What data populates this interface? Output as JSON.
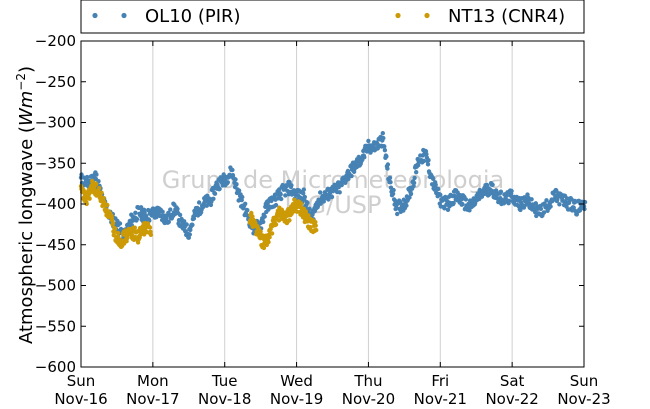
{
  "chart_data": {
    "type": "scatter",
    "ylabel_text": "Atmospheric longwave (",
    "ylabel_unit": "Wm",
    "ylabel_exp": "−2",
    "ylabel_close": ")",
    "xlabel": "",
    "ylim": [
      -600,
      -200
    ],
    "xlim": [
      0,
      7
    ],
    "yticks": [
      -200,
      -250,
      -300,
      -350,
      -400,
      -450,
      -500,
      -550,
      -600
    ],
    "ytick_labels": [
      "−200",
      "−250",
      "−300",
      "−350",
      "−400",
      "−450",
      "−500",
      "−550",
      "−600"
    ],
    "xticks": [
      0,
      1,
      2,
      3,
      4,
      5,
      6,
      7
    ],
    "xtick_labels": [
      [
        "Sun",
        "Nov-16"
      ],
      [
        "Mon",
        "Nov-17"
      ],
      [
        "Tue",
        "Nov-18"
      ],
      [
        "Wed",
        "Nov-19"
      ],
      [
        "Thu",
        "Nov-20"
      ],
      [
        "Fri",
        "Nov-21"
      ],
      [
        "Sat",
        "Nov-22"
      ],
      [
        "Sun",
        "Nov-23"
      ]
    ],
    "grid": "vertical",
    "legend_position": "top",
    "watermark": [
      "Grupo de Micrometeorologia",
      "IAG/USP"
    ],
    "series": [
      {
        "name": "OL10 (PIR)",
        "color": "#4682b4",
        "x": [
          0,
          0.1,
          0.2,
          0.3,
          0.4,
          0.5,
          0.6,
          0.7,
          0.8,
          0.9,
          1.0,
          1.1,
          1.2,
          1.3,
          1.4,
          1.5,
          1.6,
          1.7,
          1.8,
          1.9,
          2.0,
          2.1,
          2.2,
          2.3,
          2.4,
          2.5,
          2.6,
          2.7,
          2.8,
          2.9,
          3.0,
          3.1,
          3.2,
          3.3,
          3.4,
          3.5,
          3.6,
          3.7,
          3.8,
          3.9,
          4.0,
          4.1,
          4.2,
          4.3,
          4.4,
          4.5,
          4.6,
          4.7,
          4.8,
          4.9,
          5.0,
          5.1,
          5.2,
          5.3,
          5.4,
          5.5,
          5.6,
          5.7,
          5.8,
          5.9,
          6.0,
          6.1,
          6.2,
          6.3,
          6.4,
          6.5,
          6.6,
          6.7,
          6.8,
          6.9,
          7.0
        ],
        "values": [
          -370,
          -375,
          -365,
          -395,
          -415,
          -425,
          -440,
          -420,
          -410,
          -415,
          -412,
          -410,
          -420,
          -405,
          -425,
          -435,
          -410,
          -400,
          -395,
          -375,
          -370,
          -360,
          -390,
          -410,
          -430,
          -425,
          -400,
          -395,
          -385,
          -380,
          -390,
          -390,
          -420,
          -395,
          -390,
          -385,
          -380,
          -365,
          -355,
          -345,
          -330,
          -330,
          -320,
          -375,
          -405,
          -400,
          -380,
          -345,
          -340,
          -375,
          -395,
          -400,
          -390,
          -395,
          -405,
          -395,
          -385,
          -380,
          -390,
          -395,
          -390,
          -400,
          -395,
          -405,
          -410,
          -400,
          -390,
          -395,
          -400,
          -405,
          -400
        ]
      },
      {
        "name": "NT13 (CNR4)",
        "color": "#cc9a06",
        "x": [
          0,
          0.08,
          0.16,
          0.24,
          0.32,
          0.4,
          0.48,
          0.56,
          0.64,
          0.72,
          0.8,
          0.88,
          0.96,
          2.35,
          2.42,
          2.49,
          2.56,
          2.63,
          2.7,
          2.77,
          2.84,
          2.91,
          2.98,
          3.05,
          3.12,
          3.19,
          3.26
        ],
        "values": [
          -385,
          -395,
          -378,
          -385,
          -400,
          -415,
          -438,
          -445,
          -438,
          -435,
          -440,
          -430,
          -430,
          -415,
          -425,
          -440,
          -450,
          -435,
          -420,
          -410,
          -418,
          -412,
          -400,
          -405,
          -415,
          -425,
          -430
        ]
      }
    ]
  }
}
